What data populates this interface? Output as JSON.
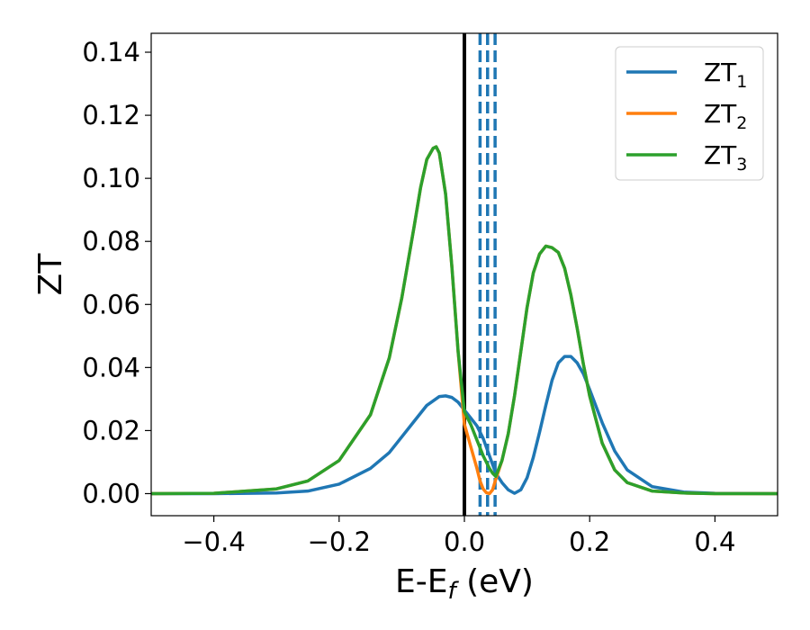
{
  "chart_data": {
    "type": "line",
    "title": "",
    "xlabel": "E-E",
    "xlabel_sub": "f",
    "xlabel_unit": " (eV)",
    "ylabel": "ZT",
    "xlim": [
      -0.5,
      0.5
    ],
    "ylim": [
      -0.007,
      0.146
    ],
    "xticks": [
      -0.4,
      -0.2,
      0.0,
      0.2,
      0.4
    ],
    "xtick_labels": [
      "−0.4",
      "−0.2",
      "0.0",
      "0.2",
      "0.4"
    ],
    "yticks": [
      0.0,
      0.02,
      0.04,
      0.06,
      0.08,
      0.1,
      0.12,
      0.14
    ],
    "ytick_labels": [
      "0.00",
      "0.02",
      "0.04",
      "0.06",
      "0.08",
      "0.10",
      "0.12",
      "0.14"
    ],
    "grid": false,
    "legend_position": "top-right",
    "vertical_lines": [
      {
        "x": 0.0,
        "style": "solid",
        "color": "#000000"
      },
      {
        "x": 0.025,
        "style": "dashed",
        "color": "#1f77b4"
      },
      {
        "x": 0.037,
        "style": "dashed",
        "color": "#1f77b4"
      },
      {
        "x": 0.049,
        "style": "dashed",
        "color": "#1f77b4"
      }
    ],
    "series": [
      {
        "name": "ZT",
        "sub": "1",
        "color": "#1f77b4",
        "x": [
          -0.5,
          -0.4,
          -0.3,
          -0.25,
          -0.2,
          -0.15,
          -0.12,
          -0.1,
          -0.08,
          -0.06,
          -0.04,
          -0.03,
          -0.02,
          -0.01,
          0.0,
          0.01,
          0.02,
          0.03,
          0.04,
          0.05,
          0.06,
          0.07,
          0.08,
          0.09,
          0.1,
          0.11,
          0.12,
          0.13,
          0.14,
          0.15,
          0.16,
          0.17,
          0.18,
          0.19,
          0.2,
          0.22,
          0.24,
          0.26,
          0.3,
          0.35,
          0.4,
          0.5
        ],
        "y": [
          0.0,
          0.0,
          0.0002,
          0.0008,
          0.003,
          0.008,
          0.013,
          0.018,
          0.023,
          0.028,
          0.0308,
          0.031,
          0.0305,
          0.029,
          0.0265,
          0.024,
          0.0215,
          0.0175,
          0.012,
          0.0065,
          0.0035,
          0.0012,
          0.0001,
          0.0012,
          0.005,
          0.0115,
          0.0195,
          0.028,
          0.036,
          0.0415,
          0.0435,
          0.0435,
          0.0415,
          0.038,
          0.033,
          0.0225,
          0.0135,
          0.0075,
          0.0022,
          0.0005,
          0.0001,
          0.0
        ]
      },
      {
        "name": "ZT",
        "sub": "2",
        "color": "#ff7f0e",
        "x": [
          -0.5,
          -0.4,
          -0.3,
          -0.25,
          -0.2,
          -0.15,
          -0.12,
          -0.1,
          -0.08,
          -0.07,
          -0.06,
          -0.05,
          -0.045,
          -0.04,
          -0.03,
          -0.02,
          -0.01,
          0.0,
          0.01,
          0.02,
          0.025,
          0.03,
          0.035,
          0.04,
          0.045,
          0.05,
          0.06,
          0.07,
          0.08,
          0.09,
          0.1,
          0.11,
          0.12,
          0.13,
          0.14,
          0.15,
          0.16,
          0.17,
          0.18,
          0.19,
          0.2,
          0.22,
          0.24,
          0.26,
          0.3,
          0.35,
          0.4,
          0.5
        ],
        "y": [
          0.0,
          0.0001,
          0.0015,
          0.004,
          0.0105,
          0.025,
          0.043,
          0.062,
          0.085,
          0.097,
          0.106,
          0.1095,
          0.11,
          0.108,
          0.095,
          0.072,
          0.045,
          0.022,
          0.015,
          0.008,
          0.004,
          0.0015,
          0.0003,
          0.0,
          0.0012,
          0.0045,
          0.0105,
          0.019,
          0.031,
          0.045,
          0.059,
          0.07,
          0.076,
          0.0785,
          0.078,
          0.0765,
          0.0715,
          0.063,
          0.0525,
          0.041,
          0.031,
          0.016,
          0.0075,
          0.0035,
          0.0008,
          0.0002,
          0.0,
          0.0
        ]
      },
      {
        "name": "ZT",
        "sub": "3",
        "color": "#2ca02c",
        "x": [
          -0.5,
          -0.4,
          -0.3,
          -0.25,
          -0.2,
          -0.15,
          -0.12,
          -0.1,
          -0.08,
          -0.07,
          -0.06,
          -0.05,
          -0.045,
          -0.04,
          -0.03,
          -0.02,
          -0.01,
          0.0,
          0.01,
          0.02,
          0.03,
          0.04,
          0.045,
          0.05,
          0.06,
          0.07,
          0.08,
          0.09,
          0.1,
          0.11,
          0.12,
          0.13,
          0.14,
          0.15,
          0.16,
          0.17,
          0.18,
          0.19,
          0.2,
          0.22,
          0.24,
          0.26,
          0.3,
          0.35,
          0.4,
          0.5
        ],
        "y": [
          0.0,
          0.0001,
          0.0015,
          0.004,
          0.0105,
          0.025,
          0.043,
          0.062,
          0.085,
          0.097,
          0.106,
          0.1095,
          0.11,
          0.108,
          0.095,
          0.072,
          0.045,
          0.026,
          0.022,
          0.017,
          0.012,
          0.008,
          0.0065,
          0.0055,
          0.0105,
          0.019,
          0.031,
          0.045,
          0.059,
          0.07,
          0.076,
          0.0785,
          0.078,
          0.0765,
          0.0715,
          0.063,
          0.0525,
          0.041,
          0.031,
          0.016,
          0.0075,
          0.0035,
          0.0008,
          0.0002,
          0.0,
          0.0
        ]
      }
    ]
  }
}
